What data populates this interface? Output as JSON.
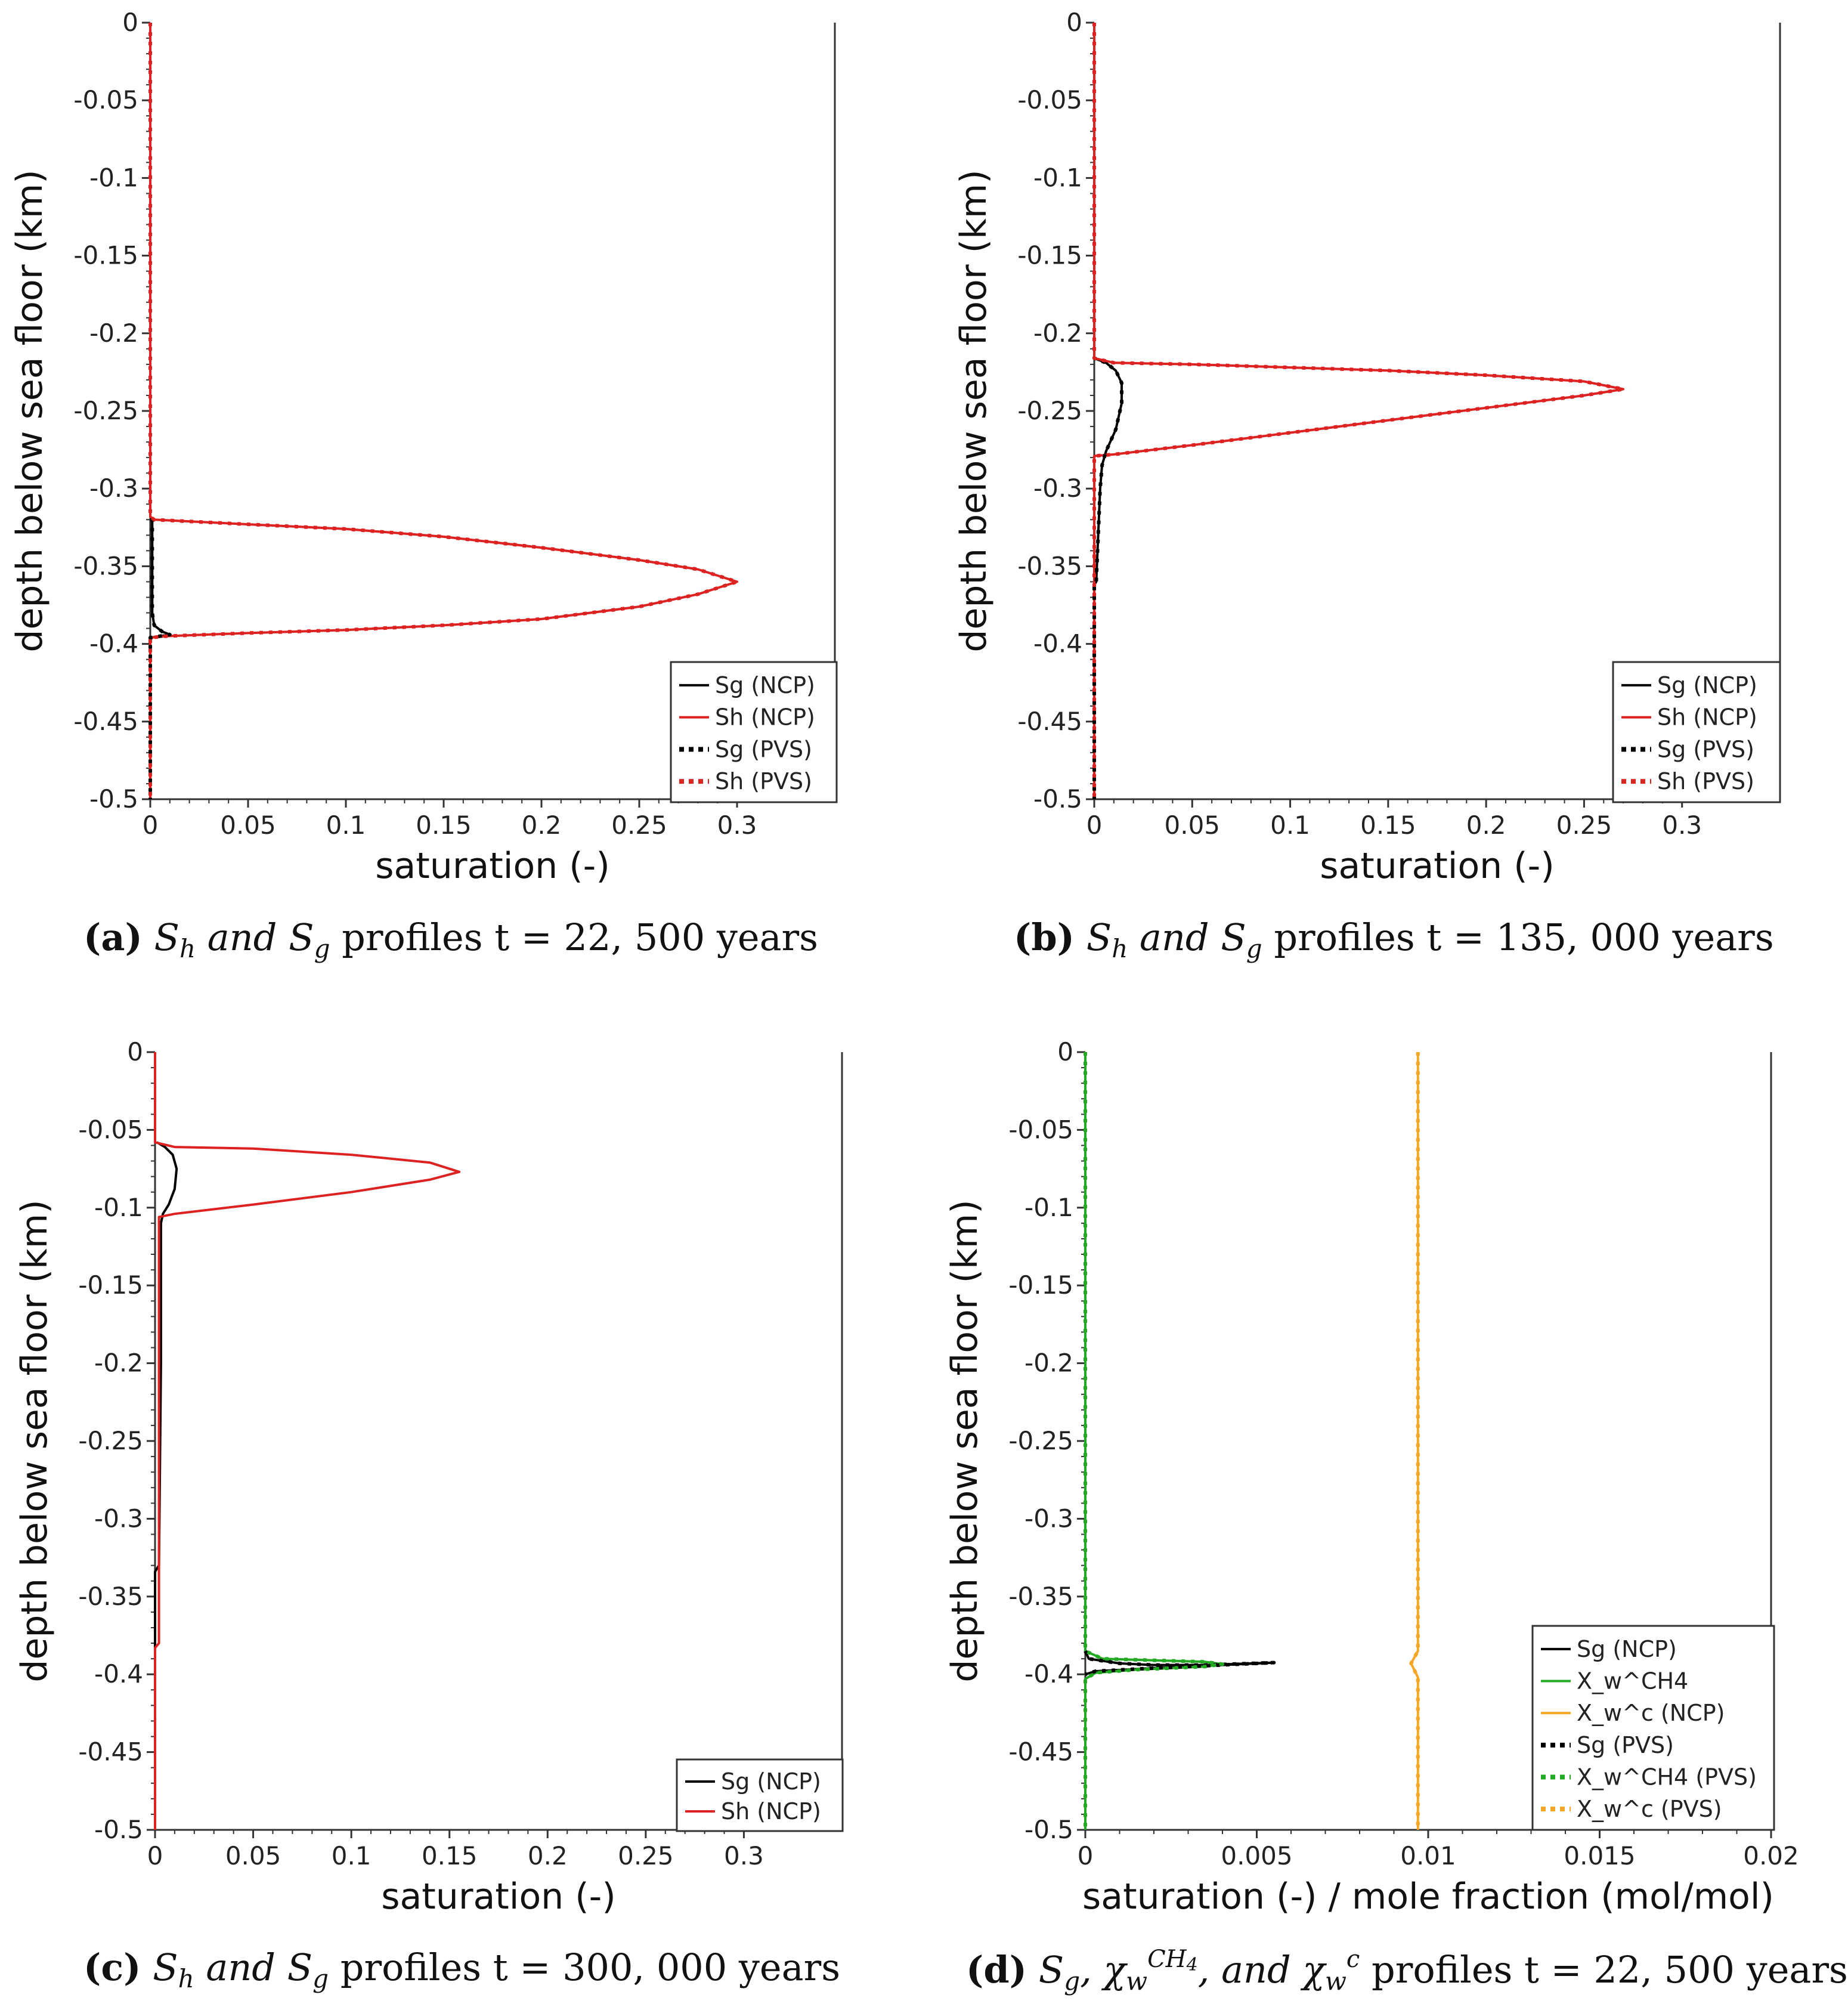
{
  "chart_data": [
    {
      "type": "line",
      "panel": "a",
      "xlabel": "saturation (-)",
      "ylabel": "depth below sea floor (km)",
      "xlim": [
        0,
        0.35
      ],
      "ylim": [
        -0.5,
        0
      ],
      "xticks": [
        "0",
        "0.05",
        "0.1",
        "0.15",
        "0.2",
        "0.25",
        "0.3"
      ],
      "yticks": [
        "0",
        "-0.05",
        "-0.1",
        "-0.15",
        "-0.2",
        "-0.25",
        "-0.3",
        "-0.35",
        "-0.4",
        "-0.45",
        "-0.5"
      ],
      "legend": "bottom-right",
      "series": [
        {
          "name": "Sg (NCP)",
          "color": "#000000",
          "style": "solid",
          "points": [
            [
              0,
              0
            ],
            [
              0,
              -0.318
            ],
            [
              0.001,
              -0.32
            ],
            [
              0.001,
              -0.38
            ],
            [
              0.002,
              -0.388
            ],
            [
              0.006,
              -0.392
            ],
            [
              0.01,
              -0.394
            ],
            [
              0,
              -0.396
            ],
            [
              0,
              -0.5
            ]
          ]
        },
        {
          "name": "Sh (NCP)",
          "color": "#dd2222",
          "style": "solid",
          "points": [
            [
              0,
              0
            ],
            [
              0,
              -0.318
            ],
            [
              0.002,
              -0.32
            ],
            [
              0.05,
              -0.323
            ],
            [
              0.1,
              -0.326
            ],
            [
              0.15,
              -0.331
            ],
            [
              0.2,
              -0.338
            ],
            [
              0.25,
              -0.346
            ],
            [
              0.28,
              -0.352
            ],
            [
              0.3,
              -0.36
            ],
            [
              0.28,
              -0.368
            ],
            [
              0.25,
              -0.376
            ],
            [
              0.2,
              -0.384
            ],
            [
              0.15,
              -0.388
            ],
            [
              0.1,
              -0.391
            ],
            [
              0.05,
              -0.393
            ],
            [
              0.008,
              -0.395
            ],
            [
              0,
              -0.396
            ],
            [
              0,
              -0.5
            ]
          ]
        },
        {
          "name": "Sg (PVS)",
          "color": "#000000",
          "style": "dotted",
          "points": [
            [
              0,
              0
            ],
            [
              0,
              -0.318
            ],
            [
              0.001,
              -0.32
            ],
            [
              0.001,
              -0.38
            ],
            [
              0.002,
              -0.388
            ],
            [
              0.006,
              -0.392
            ],
            [
              0.01,
              -0.394
            ],
            [
              0,
              -0.396
            ],
            [
              0,
              -0.5
            ]
          ]
        },
        {
          "name": "Sh (PVS)",
          "color": "#dd2222",
          "style": "dotted",
          "points": [
            [
              0,
              0
            ],
            [
              0,
              -0.318
            ],
            [
              0.002,
              -0.32
            ],
            [
              0.05,
              -0.323
            ],
            [
              0.1,
              -0.326
            ],
            [
              0.15,
              -0.331
            ],
            [
              0.2,
              -0.338
            ],
            [
              0.25,
              -0.346
            ],
            [
              0.28,
              -0.352
            ],
            [
              0.3,
              -0.36
            ],
            [
              0.28,
              -0.368
            ],
            [
              0.25,
              -0.376
            ],
            [
              0.2,
              -0.384
            ],
            [
              0.15,
              -0.388
            ],
            [
              0.1,
              -0.391
            ],
            [
              0.05,
              -0.393
            ],
            [
              0.008,
              -0.395
            ],
            [
              0,
              -0.396
            ],
            [
              0,
              -0.5
            ]
          ]
        }
      ]
    },
    {
      "type": "line",
      "panel": "b",
      "xlabel": "saturation (-)",
      "ylabel": "depth below sea floor (km)",
      "xlim": [
        0,
        0.35
      ],
      "ylim": [
        -0.5,
        0
      ],
      "xticks": [
        "0",
        "0.05",
        "0.1",
        "0.15",
        "0.2",
        "0.25",
        "0.3"
      ],
      "yticks": [
        "0",
        "-0.05",
        "-0.1",
        "-0.15",
        "-0.2",
        "-0.25",
        "-0.3",
        "-0.35",
        "-0.4",
        "-0.45",
        "-0.5"
      ],
      "legend": "bottom-right",
      "series": [
        {
          "name": "Sg (NCP)",
          "color": "#000000",
          "style": "solid",
          "points": [
            [
              0,
              0
            ],
            [
              0,
              -0.216
            ],
            [
              0.006,
              -0.219
            ],
            [
              0.011,
              -0.224
            ],
            [
              0.014,
              -0.232
            ],
            [
              0.014,
              -0.245
            ],
            [
              0.011,
              -0.262
            ],
            [
              0.006,
              -0.276
            ],
            [
              0.004,
              -0.285
            ],
            [
              0.003,
              -0.3
            ],
            [
              0.002,
              -0.33
            ],
            [
              0.001,
              -0.36
            ],
            [
              0,
              -0.362
            ],
            [
              0,
              -0.5
            ]
          ]
        },
        {
          "name": "Sh (NCP)",
          "color": "#dd2222",
          "style": "solid",
          "points": [
            [
              0,
              0
            ],
            [
              0,
              -0.216
            ],
            [
              0.01,
              -0.219
            ],
            [
              0.05,
              -0.22
            ],
            [
              0.1,
              -0.222
            ],
            [
              0.15,
              -0.224
            ],
            [
              0.2,
              -0.227
            ],
            [
              0.25,
              -0.231
            ],
            [
              0.27,
              -0.236
            ],
            [
              0.25,
              -0.24
            ],
            [
              0.2,
              -0.248
            ],
            [
              0.15,
              -0.256
            ],
            [
              0.1,
              -0.264
            ],
            [
              0.05,
              -0.272
            ],
            [
              0.01,
              -0.278
            ],
            [
              0,
              -0.279
            ],
            [
              0,
              -0.5
            ]
          ]
        },
        {
          "name": "Sg (PVS)",
          "color": "#000000",
          "style": "dotted",
          "points": [
            [
              0,
              0
            ],
            [
              0,
              -0.216
            ],
            [
              0.006,
              -0.219
            ],
            [
              0.011,
              -0.224
            ],
            [
              0.014,
              -0.232
            ],
            [
              0.014,
              -0.245
            ],
            [
              0.011,
              -0.262
            ],
            [
              0.006,
              -0.276
            ],
            [
              0.004,
              -0.285
            ],
            [
              0.003,
              -0.3
            ],
            [
              0.002,
              -0.33
            ],
            [
              0.001,
              -0.36
            ],
            [
              0,
              -0.362
            ],
            [
              0,
              -0.5
            ]
          ]
        },
        {
          "name": "Sh (PVS)",
          "color": "#dd2222",
          "style": "dotted",
          "points": [
            [
              0,
              0
            ],
            [
              0,
              -0.216
            ],
            [
              0.01,
              -0.219
            ],
            [
              0.05,
              -0.22
            ],
            [
              0.1,
              -0.222
            ],
            [
              0.15,
              -0.224
            ],
            [
              0.2,
              -0.227
            ],
            [
              0.25,
              -0.231
            ],
            [
              0.27,
              -0.236
            ],
            [
              0.25,
              -0.24
            ],
            [
              0.2,
              -0.248
            ],
            [
              0.15,
              -0.256
            ],
            [
              0.1,
              -0.264
            ],
            [
              0.05,
              -0.272
            ],
            [
              0.01,
              -0.278
            ],
            [
              0,
              -0.279
            ],
            [
              0,
              -0.5
            ]
          ]
        }
      ]
    },
    {
      "type": "line",
      "panel": "c",
      "xlabel": "saturation (-)",
      "ylabel": "depth below sea floor (km)",
      "xlim": [
        0,
        0.35
      ],
      "ylim": [
        -0.5,
        0
      ],
      "xticks": [
        "0",
        "0.05",
        "0.1",
        "0.15",
        "0.2",
        "0.25",
        "0.3"
      ],
      "yticks": [
        "0",
        "-0.05",
        "-0.1",
        "-0.15",
        "-0.2",
        "-0.25",
        "-0.3",
        "-0.35",
        "-0.4",
        "-0.45",
        "-0.5"
      ],
      "legend": "bottom-right",
      "series": [
        {
          "name": "Sg (NCP)",
          "color": "#000000",
          "style": "solid",
          "points": [
            [
              0.001,
              -0.058
            ],
            [
              0.005,
              -0.061
            ],
            [
              0.009,
              -0.066
            ],
            [
              0.011,
              -0.075
            ],
            [
              0.01,
              -0.088
            ],
            [
              0.007,
              -0.098
            ],
            [
              0.004,
              -0.104
            ],
            [
              0.003,
              -0.11
            ],
            [
              0.003,
              -0.2
            ],
            [
              0.002,
              -0.33
            ],
            [
              0,
              -0.334
            ],
            [
              0,
              -0.5
            ]
          ]
        },
        {
          "name": "Sh (NCP)",
          "color": "#dd2222",
          "style": "solid",
          "points": [
            [
              0,
              0
            ],
            [
              0,
              -0.058
            ],
            [
              0.01,
              -0.061
            ],
            [
              0.05,
              -0.062
            ],
            [
              0.1,
              -0.066
            ],
            [
              0.14,
              -0.071
            ],
            [
              0.155,
              -0.077
            ],
            [
              0.14,
              -0.082
            ],
            [
              0.1,
              -0.09
            ],
            [
              0.05,
              -0.098
            ],
            [
              0.01,
              -0.104
            ],
            [
              0.002,
              -0.106
            ],
            [
              0.002,
              -0.38
            ],
            [
              0,
              -0.383
            ],
            [
              0,
              -0.5
            ]
          ]
        }
      ]
    },
    {
      "type": "line",
      "panel": "d",
      "xlabel": "saturation (-) / mole fraction (mol/mol)",
      "ylabel": "depth below sea floor (km)",
      "xlim": [
        0,
        0.02
      ],
      "ylim": [
        -0.5,
        0
      ],
      "xticks": [
        "0",
        "0.005",
        "0.01",
        "0.015",
        "0.02"
      ],
      "yticks": [
        "0",
        "-0.05",
        "-0.1",
        "-0.15",
        "-0.2",
        "-0.25",
        "-0.3",
        "-0.35",
        "-0.4",
        "-0.45",
        "-0.5"
      ],
      "legend": "bottom-right",
      "series": [
        {
          "name": "Sg (NCP)",
          "color": "#000000",
          "style": "solid",
          "points": [
            [
              0,
              -0.385
            ],
            [
              0.0001,
              -0.39
            ],
            [
              0.001,
              -0.393
            ],
            [
              0.002,
              -0.394
            ],
            [
              0.0035,
              -0.394
            ],
            [
              0.0055,
              -0.3925
            ],
            [
              0.002,
              -0.396
            ],
            [
              0.0003,
              -0.398
            ],
            [
              0,
              -0.4
            ]
          ]
        },
        {
          "name": "X_w^CH4",
          "color": "#22aa22",
          "style": "solid",
          "points": [
            [
              0,
              0
            ],
            [
              0,
              -0.385
            ],
            [
              0.0005,
              -0.39
            ],
            [
              0.002,
              -0.391
            ],
            [
              0.0035,
              -0.392
            ],
            [
              0.004,
              -0.3935
            ],
            [
              0.0035,
              -0.395
            ],
            [
              0.0015,
              -0.397
            ],
            [
              0.0003,
              -0.399
            ],
            [
              0,
              -0.403
            ],
            [
              0,
              -0.5
            ]
          ]
        },
        {
          "name": "X_w^c (NCP)",
          "color": "#f5a623",
          "style": "solid",
          "points": [
            [
              0.0097,
              0
            ],
            [
              0.0097,
              -0.385
            ],
            [
              0.0095,
              -0.393
            ],
            [
              0.0097,
              -0.402
            ],
            [
              0.0097,
              -0.5
            ]
          ]
        },
        {
          "name": "Sg (PVS)",
          "color": "#000000",
          "style": "dotted",
          "points": [
            [
              0,
              -0.385
            ],
            [
              0.0001,
              -0.39
            ],
            [
              0.001,
              -0.393
            ],
            [
              0.002,
              -0.394
            ],
            [
              0.0035,
              -0.394
            ],
            [
              0.0055,
              -0.3925
            ],
            [
              0.002,
              -0.396
            ],
            [
              0.0003,
              -0.398
            ],
            [
              0,
              -0.4
            ]
          ]
        },
        {
          "name": "X_w^CH4 (PVS)",
          "color": "#22aa22",
          "style": "dotted",
          "points": [
            [
              0,
              0
            ],
            [
              0,
              -0.385
            ],
            [
              0.0005,
              -0.39
            ],
            [
              0.002,
              -0.391
            ],
            [
              0.0035,
              -0.392
            ],
            [
              0.004,
              -0.3935
            ],
            [
              0.0035,
              -0.395
            ],
            [
              0.0015,
              -0.397
            ],
            [
              0.0003,
              -0.399
            ],
            [
              0,
              -0.403
            ],
            [
              0,
              -0.5
            ]
          ]
        },
        {
          "name": "X_w^c (PVS)",
          "color": "#f5a623",
          "style": "dotted",
          "points": [
            [
              0.0097,
              0
            ],
            [
              0.0097,
              -0.385
            ],
            [
              0.0095,
              -0.393
            ],
            [
              0.0097,
              -0.402
            ],
            [
              0.0097,
              -0.5
            ]
          ]
        }
      ]
    }
  ],
  "captions": {
    "a": {
      "label": "(a)",
      "pre": " S",
      "sub1": "h",
      "mid": " and S",
      "sub2": "g",
      "post": " profiles  t = 22, 500 years"
    },
    "b": {
      "label": "(b)",
      "pre": " S",
      "sub1": "h",
      "mid": " and S",
      "sub2": "g",
      "post": " profiles  t = 135, 000 years"
    },
    "c": {
      "label": "(c)",
      "pre": " S",
      "sub1": "h",
      "mid": " and S",
      "sub2": "g",
      "post": " profiles  t = 300, 000 years"
    },
    "d": {
      "label": "(d)",
      "pre": " S",
      "sub1": "g",
      "chi1": ", χ",
      "chi1_sub": "w",
      "chi1_sup": "CH",
      "chi1_sup_sub": "4",
      "mid": ", and χ",
      "chi2_sub": "w",
      "chi2_sup": "c",
      "post": " profiles  t = 22, 500 years"
    }
  }
}
